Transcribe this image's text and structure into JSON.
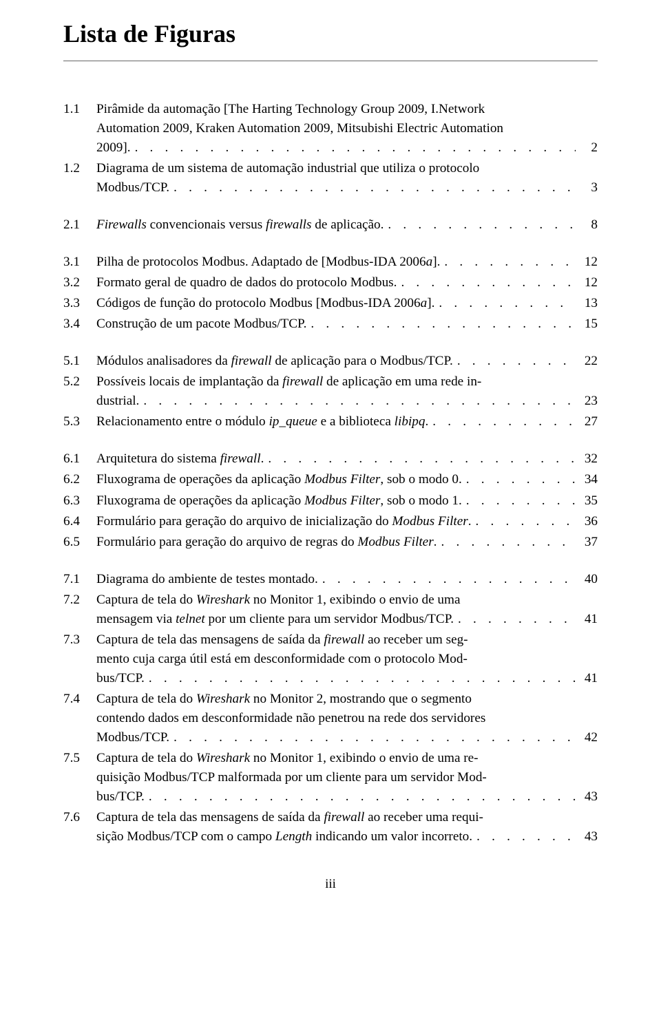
{
  "title": "Lista de Figuras",
  "page_number": "iii",
  "groups": [
    {
      "entries": [
        {
          "num": "1.1",
          "lines": [
            "Pirâmide da automação [The Harting Technology Group 2009, I.Network",
            "Automation 2009, Kraken Automation 2009, Mitsubishi Electric Automation"
          ],
          "last": "2009].",
          "page": "2"
        },
        {
          "num": "1.2",
          "lines": [
            "Diagrama de um sistema de automação industrial que utiliza o protocolo"
          ],
          "last": "Modbus/TCP.",
          "page": "3"
        }
      ]
    },
    {
      "entries": [
        {
          "num": "2.1",
          "lines": [],
          "last_html": "<span class=\"ital\">Firewalls</span> convencionais versus <span class=\"ital\">firewalls</span> de aplicação.",
          "page": "8"
        }
      ]
    },
    {
      "entries": [
        {
          "num": "3.1",
          "lines": [],
          "last_html": "Pilha de protocolos Modbus. Adaptado de [Modbus-IDA 2006<span class=\"ital\">a</span>].",
          "page": "12"
        },
        {
          "num": "3.2",
          "lines": [],
          "last": "Formato geral de quadro de dados do protocolo Modbus.",
          "page": "12"
        },
        {
          "num": "3.3",
          "lines": [],
          "last_html": "Códigos de função do protocolo Modbus [Modbus-IDA 2006<span class=\"ital\">a</span>].",
          "page": "13"
        },
        {
          "num": "3.4",
          "lines": [],
          "last": "Construção de um pacote Modbus/TCP.",
          "page": "15"
        }
      ]
    },
    {
      "entries": [
        {
          "num": "5.1",
          "lines": [],
          "last_html": "Módulos analisadores da <span class=\"ital\">firewall</span> de aplicação para o Modbus/TCP.",
          "page": "22"
        },
        {
          "num": "5.2",
          "lines_html": [
            "Possíveis locais de implantação da <span class=\"ital\">firewall</span> de aplicação em uma rede in-"
          ],
          "last": "dustrial.",
          "page": "23"
        },
        {
          "num": "5.3",
          "lines": [],
          "last_html": "Relacionamento entre o módulo <span class=\"ital\">ip_queue</span> e a biblioteca <span class=\"ital\">libipq</span>.",
          "page": "27"
        }
      ]
    },
    {
      "entries": [
        {
          "num": "6.1",
          "lines": [],
          "last_html": "Arquitetura do sistema <span class=\"ital\">firewall</span>.",
          "page": "32"
        },
        {
          "num": "6.2",
          "lines": [],
          "last_html": "Fluxograma de operações da aplicação <span class=\"ital\">Modbus Filter</span>, sob o modo 0.",
          "page": "34"
        },
        {
          "num": "6.3",
          "lines": [],
          "last_html": "Fluxograma de operações da aplicação <span class=\"ital\">Modbus Filter</span>, sob o modo 1.",
          "page": "35"
        },
        {
          "num": "6.4",
          "lines": [],
          "last_html": "Formulário para geração do arquivo de inicialização do <span class=\"ital\">Modbus Filter</span>.",
          "page": "36"
        },
        {
          "num": "6.5",
          "lines": [],
          "last_html": "Formulário para geração do arquivo de regras do <span class=\"ital\">Modbus Filter</span>.",
          "page": "37"
        }
      ]
    },
    {
      "entries": [
        {
          "num": "7.1",
          "lines": [],
          "last": "Diagrama do ambiente de testes montado.",
          "page": "40"
        },
        {
          "num": "7.2",
          "lines_html": [
            "Captura de tela do <span class=\"ital\">Wireshark</span> no Monitor 1, exibindo o envio de uma"
          ],
          "last_html": "mensagem via <span class=\"ital\">telnet</span> por um cliente para um servidor Modbus/TCP.",
          "page": "41"
        },
        {
          "num": "7.3",
          "lines_html": [
            "Captura de tela das mensagens de saída da <span class=\"ital\">firewall</span> ao receber um seg-",
            "mento cuja carga útil está em desconformidade com o protocolo Mod-"
          ],
          "last": "bus/TCP.",
          "page": "41"
        },
        {
          "num": "7.4",
          "lines_html": [
            "Captura de tela do <span class=\"ital\">Wireshark</span> no Monitor 2, mostrando que o segmento",
            "contendo dados em desconformidade não penetrou na rede dos servidores"
          ],
          "last": "Modbus/TCP.",
          "page": "42"
        },
        {
          "num": "7.5",
          "lines_html": [
            "Captura de tela do <span class=\"ital\">Wireshark</span> no Monitor 1, exibindo o envio de uma re-",
            "quisição Modbus/TCP malformada por um cliente para um servidor Mod-"
          ],
          "last": "bus/TCP.",
          "page": "43"
        },
        {
          "num": "7.6",
          "lines_html": [
            "Captura de tela das mensagens de saída da <span class=\"ital\">firewall</span> ao receber uma requi-"
          ],
          "last_html": "sição Modbus/TCP com o campo <span class=\"ital\">Length</span> indicando um valor incorreto.",
          "page": "43"
        }
      ]
    }
  ]
}
